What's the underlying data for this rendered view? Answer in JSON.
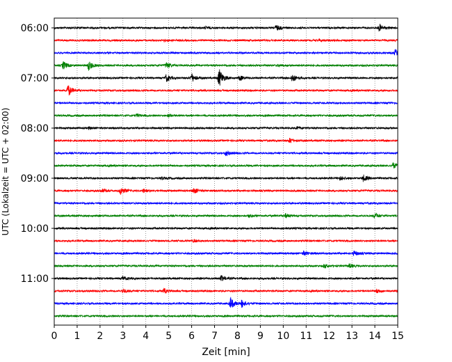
{
  "chart_data": {
    "type": "line",
    "title": "",
    "xlabel": "Zeit  [min]",
    "ylabel": "UTC (Lokalzeit = UTC + 02:00)",
    "xlim": [
      0,
      15
    ],
    "x_ticks": [
      "0",
      "1",
      "2",
      "3",
      "4",
      "5",
      "6",
      "7",
      "8",
      "9",
      "10",
      "11",
      "12",
      "13",
      "14",
      "15"
    ],
    "y_tick_labels": [
      "06:00",
      "07:00",
      "08:00",
      "09:00",
      "10:00",
      "11:00"
    ],
    "trace_interval_min": 15,
    "start_time": "06:00",
    "grid": "vertical dotted at each minute",
    "trace_colors": [
      "#000000",
      "#ff0000",
      "#0000ff",
      "#008000"
    ],
    "traces": [
      {
        "time": "06:00",
        "color": "#000000",
        "events": [
          [
            1.0,
            0.2
          ],
          [
            6.6,
            0.25
          ],
          [
            9.7,
            0.7
          ],
          [
            14.2,
            0.9
          ]
        ]
      },
      {
        "time": "06:15",
        "color": "#ff0000",
        "events": [
          [
            4.8,
            0.2
          ],
          [
            11.6,
            0.2
          ]
        ]
      },
      {
        "time": "06:30",
        "color": "#0000ff",
        "events": [
          [
            14.9,
            0.8
          ]
        ]
      },
      {
        "time": "06:45",
        "color": "#008000",
        "events": [
          [
            0.4,
            1.0
          ],
          [
            1.5,
            1.2
          ],
          [
            4.9,
            0.8
          ],
          [
            9.8,
            0.2
          ]
        ]
      },
      {
        "time": "07:00",
        "color": "#000000",
        "events": [
          [
            4.9,
            0.9
          ],
          [
            6.0,
            1.1
          ],
          [
            7.2,
            2.4
          ],
          [
            8.1,
            0.6
          ],
          [
            10.4,
            1.0
          ]
        ]
      },
      {
        "time": "07:15",
        "color": "#ff0000",
        "events": [
          [
            0.6,
            1.5
          ]
        ]
      },
      {
        "time": "07:30",
        "color": "#0000ff",
        "events": []
      },
      {
        "time": "07:45",
        "color": "#008000",
        "events": [
          [
            3.6,
            0.4
          ],
          [
            5.0,
            0.3
          ]
        ]
      },
      {
        "time": "08:00",
        "color": "#000000",
        "events": [
          [
            1.5,
            0.2
          ],
          [
            10.6,
            0.3
          ]
        ]
      },
      {
        "time": "08:15",
        "color": "#ff0000",
        "events": [
          [
            10.3,
            0.6
          ]
        ]
      },
      {
        "time": "08:30",
        "color": "#0000ff",
        "events": [
          [
            7.5,
            0.6
          ]
        ]
      },
      {
        "time": "08:45",
        "color": "#008000",
        "events": [
          [
            14.8,
            0.7
          ]
        ]
      },
      {
        "time": "09:00",
        "color": "#000000",
        "events": [
          [
            4.7,
            0.3
          ],
          [
            12.5,
            0.5
          ],
          [
            13.5,
            0.8
          ]
        ]
      },
      {
        "time": "09:15",
        "color": "#ff0000",
        "events": [
          [
            2.1,
            0.4
          ],
          [
            2.9,
            1.0
          ],
          [
            3.9,
            0.4
          ],
          [
            6.1,
            0.7
          ]
        ]
      },
      {
        "time": "09:30",
        "color": "#0000ff",
        "events": []
      },
      {
        "time": "09:45",
        "color": "#008000",
        "events": [
          [
            8.5,
            0.3
          ],
          [
            10.1,
            0.5
          ],
          [
            14.0,
            0.7
          ]
        ]
      },
      {
        "time": "10:00",
        "color": "#000000",
        "events": [
          [
            10.0,
            0.2
          ]
        ]
      },
      {
        "time": "10:15",
        "color": "#ff0000",
        "events": [
          [
            6.1,
            0.3
          ]
        ]
      },
      {
        "time": "10:30",
        "color": "#0000ff",
        "events": [
          [
            10.9,
            0.6
          ],
          [
            13.1,
            0.6
          ]
        ]
      },
      {
        "time": "10:45",
        "color": "#008000",
        "events": [
          [
            11.8,
            0.5
          ],
          [
            12.9,
            0.5
          ]
        ]
      },
      {
        "time": "11:00",
        "color": "#000000",
        "events": [
          [
            3.0,
            0.5
          ],
          [
            7.3,
            0.7
          ]
        ]
      },
      {
        "time": "11:15",
        "color": "#ff0000",
        "events": [
          [
            3.0,
            0.5
          ],
          [
            4.8,
            0.6
          ],
          [
            14.1,
            0.5
          ]
        ]
      },
      {
        "time": "11:30",
        "color": "#0000ff",
        "events": [
          [
            7.7,
            1.5
          ],
          [
            8.2,
            0.9
          ]
        ]
      },
      {
        "time": "11:45",
        "color": "#008000",
        "events": []
      }
    ]
  }
}
